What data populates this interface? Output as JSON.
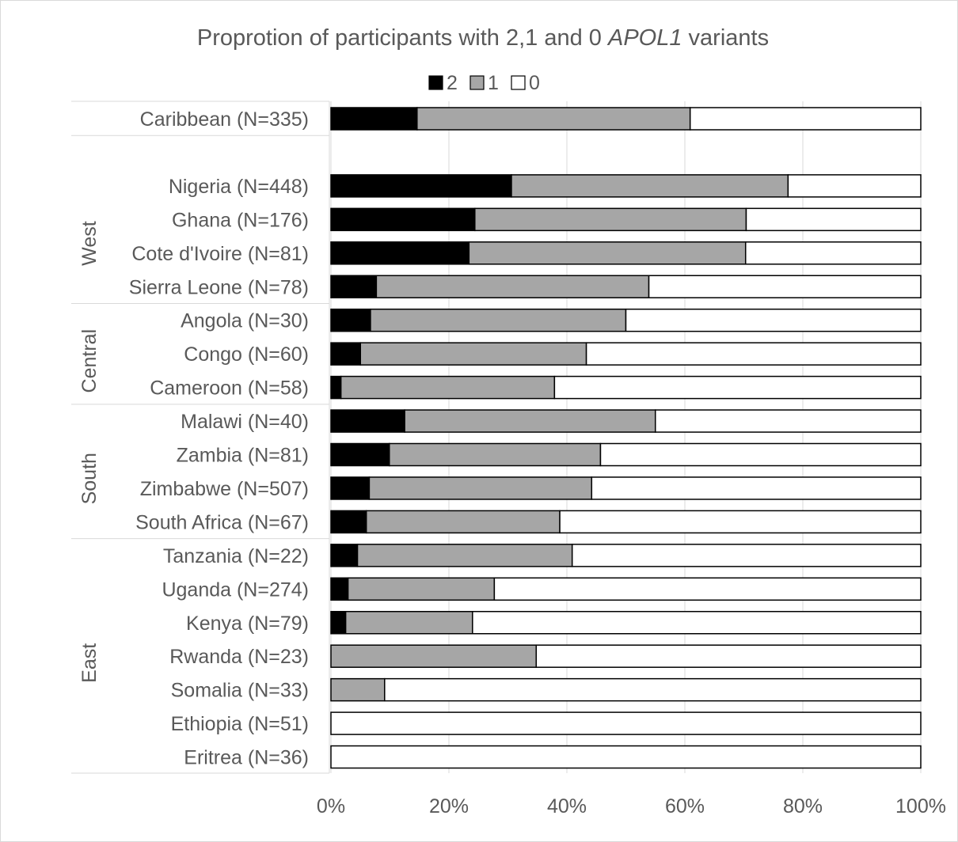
{
  "chart_data": {
    "type": "bar",
    "orientation": "horizontal",
    "stacked": "percent",
    "title": "Proprotion of participants with 2,1 and 0 APOL1 variants",
    "title_parts": [
      "Proprotion of participants with 2,1 and 0 ",
      "APOL1",
      " variants"
    ],
    "legend_position": "top",
    "grid": true,
    "xlim": [
      0,
      100
    ],
    "x_ticks": [
      "0%",
      "20%",
      "40%",
      "60%",
      "80%",
      "100%"
    ],
    "groups": [
      {
        "name": "",
        "rows": [
          "Caribbean (N=335)"
        ]
      },
      {
        "name": "West",
        "rows": [
          "Nigeria (N=448)",
          "Ghana (N=176)",
          "Cote d'Ivoire (N=81)",
          "Sierra Leone (N=78)"
        ]
      },
      {
        "name": "Central",
        "rows": [
          "Angola (N=30)",
          "Congo (N=60)",
          "Cameroon (N=58)"
        ]
      },
      {
        "name": "South",
        "rows": [
          "Malawi (N=40)",
          "Zambia (N=81)",
          "Zimbabwe (N=507)",
          "South Africa (N=67)"
        ]
      },
      {
        "name": "East",
        "rows": [
          "Tanzania (N=22)",
          "Uganda (N=274)",
          "Kenya (N=79)",
          "Rwanda (N=23)",
          "Somalia (N=33)",
          "Ethiopia (N=51)",
          "Eritrea (N=36)"
        ]
      }
    ],
    "categories": [
      "Caribbean (N=335)",
      "Nigeria (N=448)",
      "Ghana (N=176)",
      "Cote d'Ivoire (N=81)",
      "Sierra Leone (N=78)",
      "Angola (N=30)",
      "Congo (N=60)",
      "Cameroon (N=58)",
      "Malawi (N=40)",
      "Zambia (N=81)",
      "Zimbabwe (N=507)",
      "South Africa (N=67)",
      "Tanzania (N=22)",
      "Uganda (N=274)",
      "Kenya (N=79)",
      "Rwanda (N=23)",
      "Somalia (N=33)",
      "Ethiopia (N=51)",
      "Eritrea (N=36)"
    ],
    "series": [
      {
        "name": "2",
        "color": "#000000",
        "values": [
          14.6,
          30.6,
          24.4,
          23.4,
          7.7,
          6.7,
          5.0,
          1.7,
          12.5,
          9.9,
          6.5,
          6.0,
          4.5,
          2.9,
          2.5,
          0,
          0,
          0,
          0
        ]
      },
      {
        "name": "1",
        "color": "#a6a6a6",
        "values": [
          46.3,
          46.9,
          46.0,
          46.9,
          46.2,
          43.3,
          38.3,
          36.2,
          42.5,
          35.8,
          37.7,
          32.8,
          36.4,
          24.8,
          21.5,
          34.8,
          9.1,
          0,
          0
        ]
      },
      {
        "name": "0",
        "color": "#ffffff",
        "values": [
          39.1,
          22.5,
          29.6,
          29.7,
          46.1,
          50.0,
          56.7,
          62.1,
          45.0,
          54.3,
          55.8,
          61.2,
          59.1,
          72.3,
          76.0,
          65.2,
          90.9,
          100,
          100
        ]
      }
    ]
  }
}
